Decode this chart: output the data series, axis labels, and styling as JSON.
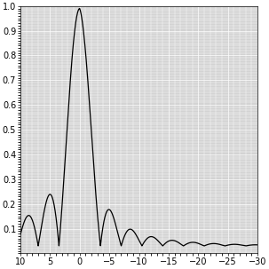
{
  "xlim": [
    10,
    -30
  ],
  "ylim": [
    0,
    1
  ],
  "xticks": [
    10,
    5,
    0,
    -5,
    -10,
    -15,
    -20,
    -25,
    -30
  ],
  "yticks": [
    0.1,
    0.2,
    0.3,
    0.4,
    0.5,
    0.6,
    0.7,
    0.8,
    0.9,
    1.0
  ],
  "line_color": "#000000",
  "line_width": 0.9,
  "bg_color": "#d3d3d3",
  "grid_color": "#ffffff",
  "grid_major_linewidth": 0.5,
  "grid_minor_linewidth": 0.3,
  "tick_fontsize": 7,
  "fig_facecolor": "#ffffff",
  "pattern_scale": 2.2,
  "asymmetry_factor": 0.055,
  "baseline": 0.03
}
